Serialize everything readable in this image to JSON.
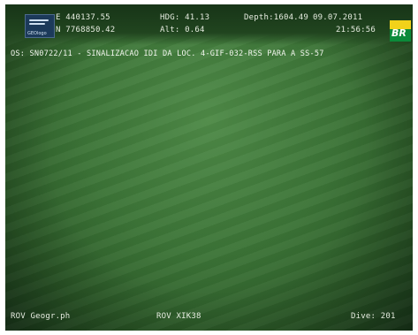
{
  "overlay": {
    "easting": "E 440137.55",
    "northing": "N 7768850.42",
    "heading": "HDG: 41.13",
    "altitude": "Alt: 0.64",
    "depth": "Depth:1604.49",
    "date": "09.07.2011",
    "time": "21:56:56",
    "os_line": "OS: SN0722/11 - SINALIZACAO IDI DA LOC. 4-GIF-032-RSS PARA A SS-57",
    "rov_camera": "ROV Geogr.ph",
    "rov_id": "ROV XIK38",
    "dive": "Dive: 201"
  },
  "logos": {
    "left_icon": "survey-company-logo-icon",
    "left_text": "GEOlogo",
    "right_icon": "petrobras-br-logo-icon",
    "right_text": "BR"
  },
  "colors": {
    "seabed": "#3c7437",
    "text": "#e6ece0",
    "br_green": "#0b8a3a",
    "br_yellow": "#f2d21a"
  }
}
